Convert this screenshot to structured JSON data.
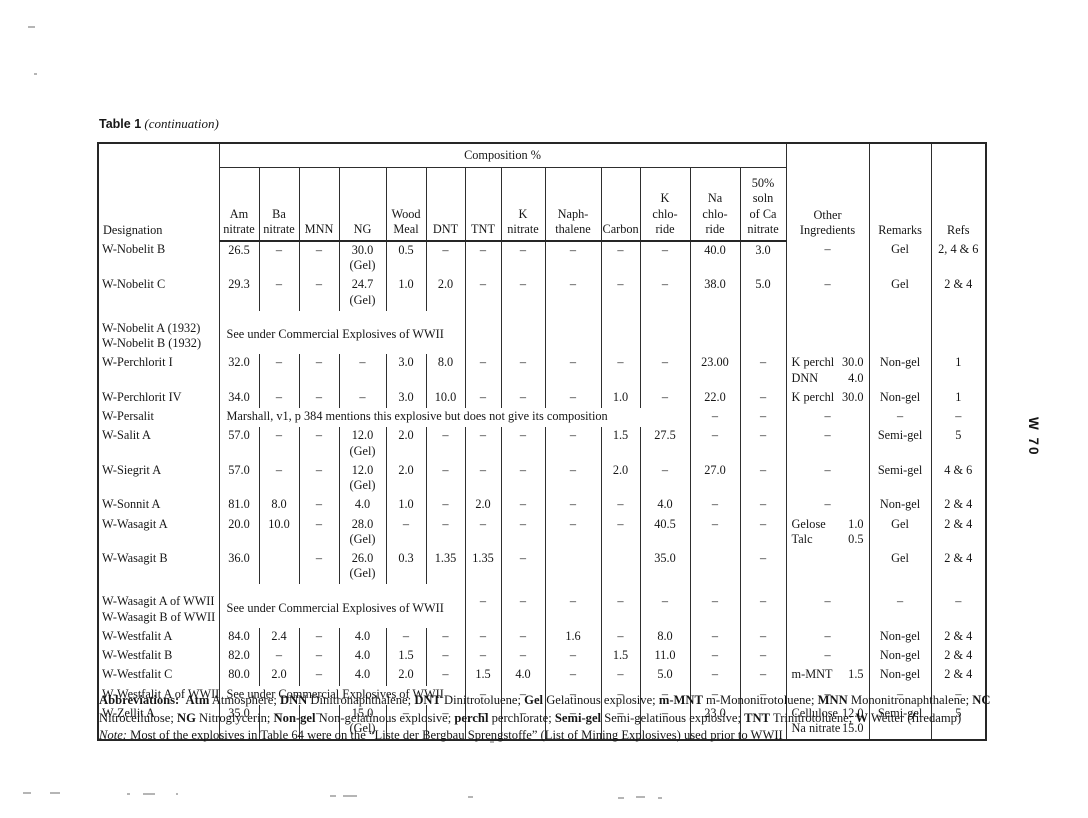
{
  "title": {
    "bold": "Table 1",
    "italic": "(continuation)"
  },
  "page_label": "W 70",
  "table": {
    "header": {
      "designation": "Designation",
      "composition": "Composition %",
      "sub": [
        "Am\nnitrate",
        "Ba\nnitrate",
        "MNN",
        "NG",
        "Wood\nMeal",
        "DNT",
        "TNT",
        "K\nnitrate",
        "Naph-\nthalene",
        "Carbon",
        "K\nchlo-\nride",
        "Na\nchlo-\nride",
        "50%\nsoln\nof Ca\nnitrate"
      ],
      "other": "Other\nIngredients",
      "remarks": "Remarks",
      "refs": "Refs"
    },
    "column_ids": [
      "designation",
      "am-nitrate",
      "ba-nitrate",
      "mnn",
      "ng",
      "wood-meal",
      "dnt",
      "tnt",
      "k-nitrate",
      "naphthalene",
      "carbon",
      "k-chloride",
      "na-chloride",
      "ca-nitrate-soln",
      "other-ingredients",
      "remarks",
      "refs"
    ],
    "rows": [
      {
        "c": [
          {
            "t": "W-Nobelit B"
          },
          {
            "t": "26.5"
          },
          {
            "t": "–"
          },
          {
            "t": "–"
          },
          {
            "t": "30.0\n(Gel)"
          },
          {
            "t": "0.5"
          },
          {
            "t": "–"
          },
          {
            "t": "–"
          },
          {
            "t": "–"
          },
          {
            "t": "–"
          },
          {
            "t": "–"
          },
          {
            "t": "–"
          },
          {
            "t": "40.0"
          },
          {
            "t": "3.0"
          },
          {
            "t": "–"
          },
          {
            "t": "Gel"
          },
          {
            "t": "2, 4 & 6"
          }
        ]
      },
      {
        "c": [
          {
            "t": "W-Nobelit C"
          },
          {
            "t": "29.3"
          },
          {
            "t": "–"
          },
          {
            "t": "–"
          },
          {
            "t": "24.7\n(Gel)"
          },
          {
            "t": "1.0"
          },
          {
            "t": "2.0"
          },
          {
            "t": "–"
          },
          {
            "t": "–"
          },
          {
            "t": "–"
          },
          {
            "t": "–"
          },
          {
            "t": "–"
          },
          {
            "t": "38.0"
          },
          {
            "t": "5.0"
          },
          {
            "t": "–"
          },
          {
            "t": "Gel"
          },
          {
            "t": "2 & 4"
          }
        ]
      },
      {
        "cls": "gap",
        "c": [
          {
            "t": "W-Nobelit A (1932)\nW-Nobelit B (1932)"
          },
          {
            "t": "See under Commercial Explosives of WWII",
            "s": 6,
            "m": 1
          },
          {
            "t": ""
          },
          {
            "t": ""
          },
          {
            "t": ""
          },
          {
            "t": ""
          },
          {
            "t": ""
          },
          {
            "t": ""
          },
          {
            "t": ""
          },
          {
            "t": ""
          },
          {
            "t": ""
          },
          {
            "t": ""
          }
        ]
      },
      {
        "c": [
          {
            "t": "W-Perchlorit I"
          },
          {
            "t": "32.0"
          },
          {
            "t": "–"
          },
          {
            "t": "–"
          },
          {
            "t": "–"
          },
          {
            "t": "3.0"
          },
          {
            "t": "8.0"
          },
          {
            "t": "–"
          },
          {
            "t": "–"
          },
          {
            "t": "–"
          },
          {
            "t": "–"
          },
          {
            "t": "–"
          },
          {
            "t": "23.00"
          },
          {
            "t": "–"
          },
          {
            "p": [
              [
                "K perchl",
                "30.0"
              ],
              [
                "DNN",
                "4.0"
              ]
            ]
          },
          {
            "t": "Non-gel"
          },
          {
            "t": "1"
          }
        ]
      },
      {
        "c": [
          {
            "t": "W-Perchlorit IV"
          },
          {
            "t": "34.0"
          },
          {
            "t": "–"
          },
          {
            "t": "–"
          },
          {
            "t": "–"
          },
          {
            "t": "3.0"
          },
          {
            "t": "10.0"
          },
          {
            "t": "–"
          },
          {
            "t": "–"
          },
          {
            "t": "–"
          },
          {
            "t": "1.0"
          },
          {
            "t": "–"
          },
          {
            "t": "22.0"
          },
          {
            "t": "–"
          },
          {
            "p": [
              [
                "K perchl",
                "30.0"
              ]
            ]
          },
          {
            "t": "Non-gel"
          },
          {
            "t": "1"
          }
        ]
      },
      {
        "c": [
          {
            "t": "W-Persalit"
          },
          {
            "t": "Marshall, v1, p 384 mentions this explosive but does not give its composition",
            "s": 11
          },
          {
            "t": "–"
          },
          {
            "t": "–"
          },
          {
            "t": "–"
          },
          {
            "t": "–"
          },
          {
            "t": "–"
          }
        ]
      },
      {
        "c": [
          {
            "t": "W-Salit A"
          },
          {
            "t": "57.0"
          },
          {
            "t": "–"
          },
          {
            "t": "–"
          },
          {
            "t": "12.0\n(Gel)"
          },
          {
            "t": "2.0"
          },
          {
            "t": "–"
          },
          {
            "t": "–"
          },
          {
            "t": "–"
          },
          {
            "t": "–"
          },
          {
            "t": "1.5"
          },
          {
            "t": "27.5"
          },
          {
            "t": "–"
          },
          {
            "t": "–"
          },
          {
            "t": "–"
          },
          {
            "t": "Semi-gel"
          },
          {
            "t": "5"
          }
        ]
      },
      {
        "c": [
          {
            "t": "W-Siegrit A"
          },
          {
            "t": "57.0"
          },
          {
            "t": "–"
          },
          {
            "t": "–"
          },
          {
            "t": "12.0\n(Gel)"
          },
          {
            "t": "2.0"
          },
          {
            "t": "–"
          },
          {
            "t": "–"
          },
          {
            "t": "–"
          },
          {
            "t": "–"
          },
          {
            "t": "2.0"
          },
          {
            "t": "–"
          },
          {
            "t": "27.0"
          },
          {
            "t": "–"
          },
          {
            "t": "–"
          },
          {
            "t": "Semi-gel"
          },
          {
            "t": "4 & 6"
          }
        ]
      },
      {
        "c": [
          {
            "t": "W-Sonnit A"
          },
          {
            "t": "81.0"
          },
          {
            "t": "8.0"
          },
          {
            "t": "–"
          },
          {
            "t": "4.0"
          },
          {
            "t": "1.0"
          },
          {
            "t": "–"
          },
          {
            "t": "2.0"
          },
          {
            "t": "–"
          },
          {
            "t": "–"
          },
          {
            "t": "–"
          },
          {
            "t": "4.0"
          },
          {
            "t": "–"
          },
          {
            "t": "–"
          },
          {
            "t": "–"
          },
          {
            "t": "Non-gel"
          },
          {
            "t": "2 & 4"
          }
        ]
      },
      {
        "c": [
          {
            "t": "W-Wasagit A"
          },
          {
            "t": "20.0"
          },
          {
            "t": "10.0"
          },
          {
            "t": "–"
          },
          {
            "t": "28.0\n(Gel)"
          },
          {
            "t": "–"
          },
          {
            "t": "–"
          },
          {
            "t": "–"
          },
          {
            "t": "–"
          },
          {
            "t": "–"
          },
          {
            "t": "–"
          },
          {
            "t": "40.5"
          },
          {
            "t": "–"
          },
          {
            "t": "–"
          },
          {
            "p": [
              [
                "Gelose",
                "1.0"
              ],
              [
                "Talc",
                "0.5"
              ]
            ]
          },
          {
            "t": "Gel"
          },
          {
            "t": "2 & 4"
          }
        ]
      },
      {
        "c": [
          {
            "t": "W-Wasagit B"
          },
          {
            "t": "36.0"
          },
          {
            "t": ""
          },
          {
            "t": "–"
          },
          {
            "t": "26.0\n(Gel)"
          },
          {
            "t": "0.3"
          },
          {
            "t": "1.35"
          },
          {
            "t": "1.35"
          },
          {
            "t": "–"
          },
          {
            "t": ""
          },
          {
            "t": ""
          },
          {
            "t": "35.0"
          },
          {
            "t": ""
          },
          {
            "t": "–"
          },
          {
            "t": ""
          },
          {
            "t": "Gel"
          },
          {
            "t": "2 & 4"
          }
        ]
      },
      {
        "cls": "gap",
        "c": [
          {
            "t": "W-Wasagit A of WWII\nW-Wasagit B of WWII"
          },
          {
            "t": "See under Commercial Explosives of WWII",
            "s": 6,
            "m": 1
          },
          {
            "t": "–"
          },
          {
            "t": "–"
          },
          {
            "t": "–"
          },
          {
            "t": "–"
          },
          {
            "t": "–"
          },
          {
            "t": "–"
          },
          {
            "t": "–"
          },
          {
            "t": "–"
          },
          {
            "t": "–"
          },
          {
            "t": "–"
          }
        ]
      },
      {
        "c": [
          {
            "t": "W-Westfalit A"
          },
          {
            "t": "84.0"
          },
          {
            "t": "2.4"
          },
          {
            "t": "–"
          },
          {
            "t": "4.0"
          },
          {
            "t": "–"
          },
          {
            "t": "–"
          },
          {
            "t": "–"
          },
          {
            "t": "–"
          },
          {
            "t": "1.6"
          },
          {
            "t": "–"
          },
          {
            "t": "8.0"
          },
          {
            "t": "–"
          },
          {
            "t": "–"
          },
          {
            "t": "–"
          },
          {
            "t": "Non-gel"
          },
          {
            "t": "2 & 4"
          }
        ]
      },
      {
        "c": [
          {
            "t": "W-Westfalit B"
          },
          {
            "t": "82.0"
          },
          {
            "t": "–"
          },
          {
            "t": "–"
          },
          {
            "t": "4.0"
          },
          {
            "t": "1.5"
          },
          {
            "t": "–"
          },
          {
            "t": "–"
          },
          {
            "t": "–"
          },
          {
            "t": "–"
          },
          {
            "t": "1.5"
          },
          {
            "t": "11.0"
          },
          {
            "t": "–"
          },
          {
            "t": "–"
          },
          {
            "t": "–"
          },
          {
            "t": "Non-gel"
          },
          {
            "t": "2 & 4"
          }
        ]
      },
      {
        "c": [
          {
            "t": "W-Westfalit C"
          },
          {
            "t": "80.0"
          },
          {
            "t": "2.0"
          },
          {
            "t": "–"
          },
          {
            "t": "4.0"
          },
          {
            "t": "2.0"
          },
          {
            "t": "–"
          },
          {
            "t": "1.5"
          },
          {
            "t": "4.0"
          },
          {
            "t": "–"
          },
          {
            "t": "–"
          },
          {
            "t": "5.0"
          },
          {
            "t": "–"
          },
          {
            "t": "–"
          },
          {
            "p": [
              [
                "m-MNT",
                "1.5"
              ]
            ]
          },
          {
            "t": "Non-gel"
          },
          {
            "t": "2 & 4"
          }
        ]
      },
      {
        "c": [
          {
            "t": "W-Westfalit A of WWII"
          },
          {
            "t": "See under Commercial Explosives of WWII",
            "s": 6
          },
          {
            "t": "–"
          },
          {
            "t": "–"
          },
          {
            "t": "–"
          },
          {
            "t": "–"
          },
          {
            "t": "–"
          },
          {
            "t": "–"
          },
          {
            "t": "–"
          },
          {
            "t": "–"
          },
          {
            "t": "–"
          },
          {
            "t": "–"
          }
        ]
      },
      {
        "c": [
          {
            "t": "W-Zellit A"
          },
          {
            "t": "35.0"
          },
          {
            "t": "–"
          },
          {
            "t": "–"
          },
          {
            "t": "15.0\n(Gel)"
          },
          {
            "t": "–"
          },
          {
            "t": "–"
          },
          {
            "t": "–"
          },
          {
            "t": "–"
          },
          {
            "t": "–"
          },
          {
            "t": "–"
          },
          {
            "t": "–"
          },
          {
            "t": "23.0"
          },
          {
            "t": "–"
          },
          {
            "p": [
              [
                "Cellulose",
                "12.0"
              ],
              [
                "Na nitrate",
                "15.0"
              ]
            ]
          },
          {
            "t": "Semi-gel"
          },
          {
            "t": "5"
          }
        ]
      }
    ]
  },
  "footer": {
    "abbreviations": {
      "label": "Abbreviations:",
      "items": [
        {
          "key": "Atm",
          "value": "Atmosphere"
        },
        {
          "key": "DNN",
          "value": "Dinitronaphthalene"
        },
        {
          "key": "DNT",
          "value": "Dinitrotoluene"
        },
        {
          "key": "Gel",
          "value": "Gelatinous explosive"
        },
        {
          "key": "m-MNT",
          "value": "m-Mononitrotoluene"
        },
        {
          "key": "MNN",
          "value": "Mononitronaphthalene"
        },
        {
          "key": "NC",
          "value": "Nitrocellulose"
        },
        {
          "key": "NG",
          "value": "Nitroglycerin"
        },
        {
          "key": "Non-gel",
          "value": "Non-gelatinous explosive"
        },
        {
          "key": "perchl",
          "value": "perchlorate"
        },
        {
          "key": "Semi-gel",
          "value": "Semi-gelatinous explosive"
        },
        {
          "key": "TNT",
          "value": "Trinitrotoluene"
        },
        {
          "key": "W",
          "value": "Wetter (firedamp)"
        }
      ]
    },
    "note": {
      "label": "Note:",
      "text": "Most of the explosives in Table 64 were on the “Liste der Bergbau Sprengstoffe” (List of Mining Explosives) used prior to WWII"
    }
  }
}
